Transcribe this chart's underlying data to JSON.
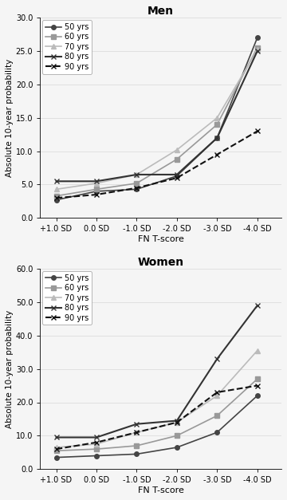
{
  "x_labels": [
    "+1.0 SD",
    "0.0 SD",
    "-1.0 SD",
    "-2.0 SD",
    "-3.0 SD",
    "-4.0 SD"
  ],
  "x_values": [
    1,
    0,
    -1,
    -2,
    -3,
    -4
  ],
  "men": {
    "title": "Men",
    "ylabel": "Absolute 10-year probability",
    "xlabel": "FN T-score",
    "ylim": [
      0,
      30.0
    ],
    "yticks": [
      0.0,
      5.0,
      10.0,
      15.0,
      20.0,
      25.0,
      30.0
    ],
    "series": {
      "50 yrs": {
        "values": [
          2.7,
          4.0,
          4.3,
          6.3,
          12.0,
          27.0
        ],
        "color": "#444444",
        "marker": "o",
        "linestyle": "-",
        "linewidth": 1.2,
        "markersize": 4
      },
      "60 yrs": {
        "values": [
          3.3,
          4.3,
          5.2,
          8.8,
          14.0,
          25.5
        ],
        "color": "#999999",
        "marker": "s",
        "linestyle": "-",
        "linewidth": 1.2,
        "markersize": 4
      },
      "70 yrs": {
        "values": [
          4.3,
          5.2,
          6.5,
          10.2,
          15.0,
          25.2
        ],
        "color": "#bbbbbb",
        "marker": "^",
        "linestyle": "-",
        "linewidth": 1.2,
        "markersize": 4
      },
      "80 yrs": {
        "values": [
          5.5,
          5.5,
          6.5,
          6.5,
          12.0,
          25.0
        ],
        "color": "#333333",
        "marker": "x",
        "linestyle": "-",
        "linewidth": 1.5,
        "markersize": 5
      },
      "90 yrs": {
        "values": [
          3.0,
          3.5,
          4.5,
          6.0,
          9.5,
          13.0
        ],
        "color": "#111111",
        "marker": "x",
        "linestyle": "--",
        "linewidth": 1.5,
        "markersize": 5
      }
    },
    "series_order": [
      "50 yrs",
      "60 yrs",
      "70 yrs",
      "80 yrs",
      "90 yrs"
    ]
  },
  "women": {
    "title": "Women",
    "ylabel": "Absolute 10-year probability",
    "xlabel": "FN T-score",
    "ylim": [
      0,
      60.0
    ],
    "yticks": [
      0.0,
      10.0,
      20.0,
      30.0,
      40.0,
      50.0,
      60.0
    ],
    "series": {
      "50 yrs": {
        "values": [
          3.5,
          4.0,
          4.5,
          6.5,
          11.0,
          22.0
        ],
        "color": "#444444",
        "marker": "o",
        "linestyle": "-",
        "linewidth": 1.2,
        "markersize": 4
      },
      "60 yrs": {
        "values": [
          5.5,
          6.0,
          7.0,
          10.0,
          16.0,
          27.0
        ],
        "color": "#999999",
        "marker": "s",
        "linestyle": "-",
        "linewidth": 1.2,
        "markersize": 4
      },
      "70 yrs": {
        "values": [
          6.5,
          7.5,
          11.0,
          14.0,
          22.0,
          35.5
        ],
        "color": "#bbbbbb",
        "marker": "^",
        "linestyle": "-",
        "linewidth": 1.2,
        "markersize": 4
      },
      "80 yrs": {
        "values": [
          9.5,
          9.5,
          13.5,
          14.5,
          33.0,
          49.0
        ],
        "color": "#333333",
        "marker": "x",
        "linestyle": "-",
        "linewidth": 1.5,
        "markersize": 5
      },
      "90 yrs": {
        "values": [
          6.0,
          8.0,
          11.0,
          14.0,
          23.0,
          25.0
        ],
        "color": "#111111",
        "marker": "x",
        "linestyle": "--",
        "linewidth": 1.5,
        "markersize": 5
      }
    },
    "series_order": [
      "50 yrs",
      "60 yrs",
      "70 yrs",
      "80 yrs",
      "90 yrs"
    ]
  },
  "background_color": "#f5f5f5",
  "grid_color": "#dddddd",
  "figsize": [
    3.6,
    6.27
  ],
  "dpi": 100
}
